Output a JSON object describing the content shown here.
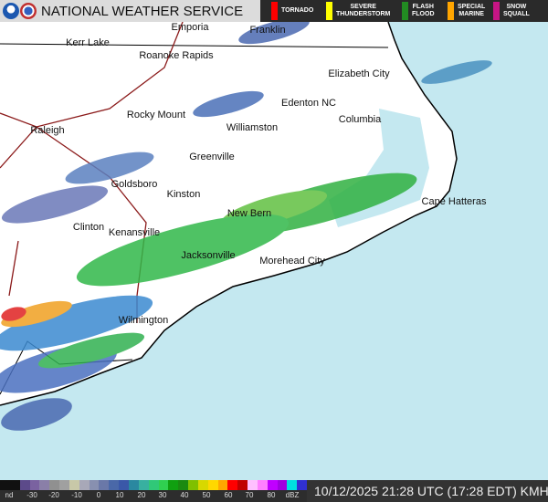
{
  "header": {
    "title": "NATIONAL WEATHER SERVICE",
    "logos": [
      "noaa-logo",
      "nws-logo"
    ]
  },
  "warnings": [
    {
      "label": "TORNADO",
      "color": "#ff0000"
    },
    {
      "label": "SEVERE THUNDERSTORM",
      "color": "#ffff00"
    },
    {
      "label": "FLASH FLOOD",
      "color": "#228b22"
    },
    {
      "label": "SPECIAL MARINE",
      "color": "#ffa500"
    },
    {
      "label": "SNOW SQUALL",
      "color": "#c71585"
    }
  ],
  "cities": [
    "Emporia",
    "Franklin",
    "Kerr Lake",
    "Roanoke Rapids",
    "Elizabeth City",
    "Rocky Mount",
    "Edenton NC",
    "Raleigh",
    "Columbia",
    "Williamston",
    "Greenville",
    "Goldsboro",
    "Kinston",
    "Cape Hatteras",
    "New Bern",
    "Clinton",
    "Kenansville",
    "Jacksonville",
    "Morehead City",
    "Wilmington"
  ],
  "legend": {
    "ticks": [
      "nd",
      "-30",
      "-20",
      "-10",
      "0",
      "10",
      "20",
      "30",
      "40",
      "50",
      "60",
      "70",
      "80",
      "dBZ"
    ],
    "colors": [
      "#111111",
      "#111111",
      "#5c4a8a",
      "#7a62a0",
      "#8a7fa8",
      "#909090",
      "#a0a0a0",
      "#c8c8a8",
      "#a8a8b8",
      "#8890b0",
      "#6a78a8",
      "#4a68a8",
      "#3a58a8",
      "#2a88a0",
      "#38b0a0",
      "#30c878",
      "#30d050",
      "#10a010",
      "#1a8a10",
      "#80c000",
      "#d8d800",
      "#ffd800",
      "#ffa800",
      "#ff0000",
      "#c00000",
      "#ffc0ff",
      "#ff80ff",
      "#c000ff",
      "#a000e0",
      "#00e0e0",
      "#3030d0"
    ]
  },
  "timestamp": "10/12/2025 21:28 UTC (17:28 EDT) KMHX"
}
